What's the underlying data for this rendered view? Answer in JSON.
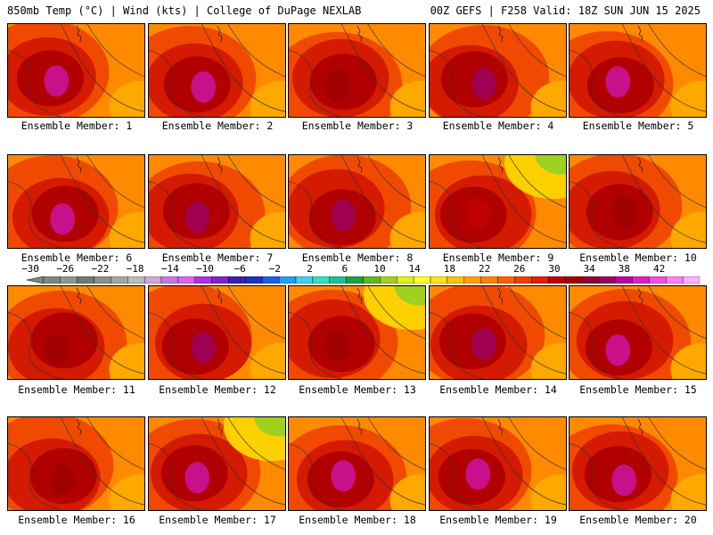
{
  "header": {
    "left": "850mb Temp (°C) | Wind (kts) | College of DuPage NEXLAB",
    "right": "00Z GEFS | F258 Valid: 18Z SUN JUN 15 2025"
  },
  "colorbar": {
    "labels": [
      "−30",
      "−26",
      "−22",
      "−18",
      "−14",
      "−10",
      "−6",
      "−2",
      "2",
      "6",
      "10",
      "14",
      "18",
      "22",
      "26",
      "30",
      "34",
      "38",
      "42"
    ],
    "colors": [
      "#7a8a7a",
      "#8c9a8c",
      "#6f7d6f",
      "#8e8e8e",
      "#a6a6a6",
      "#bcbcbc",
      "#d0a8d8",
      "#c878e0",
      "#e060f0",
      "#b030e0",
      "#8020d0",
      "#4020b0",
      "#2030c0",
      "#2060e0",
      "#20a0f0",
      "#40d0f0",
      "#30e0c0",
      "#20c090",
      "#20a040",
      "#60b820",
      "#a0d020",
      "#e0f020",
      "#ffff30",
      "#ffe020",
      "#ffc010",
      "#ffa000",
      "#ff8000",
      "#ff6000",
      "#f04000",
      "#e02000",
      "#c00000",
      "#a00000",
      "#900030",
      "#a00060",
      "#c000a0",
      "#e020c0",
      "#f050e0",
      "#ff80f0",
      "#ffb0ff"
    ]
  },
  "members": [
    {
      "caption": "Ensemble Member: 1",
      "blob": "#c8108a",
      "yellow": false
    },
    {
      "caption": "Ensemble Member: 2",
      "blob": "#c8108a",
      "yellow": false
    },
    {
      "caption": "Ensemble Member: 3",
      "blob": "#a00000",
      "yellow": false
    },
    {
      "caption": "Ensemble Member: 4",
      "blob": "#a00050",
      "yellow": false
    },
    {
      "caption": "Ensemble Member: 5",
      "blob": "#c8108a",
      "yellow": false
    },
    {
      "caption": "Ensemble Member: 6",
      "blob": "#c8108a",
      "yellow": false
    },
    {
      "caption": "Ensemble Member: 7",
      "blob": "#a00050",
      "yellow": false
    },
    {
      "caption": "Ensemble Member: 8",
      "blob": "#a00050",
      "yellow": false
    },
    {
      "caption": "Ensemble Member: 9",
      "blob": "#c00000",
      "yellow": true
    },
    {
      "caption": "Ensemble Member: 10",
      "blob": "#a00000",
      "yellow": false
    },
    {
      "caption": "Ensemble Member: 11",
      "blob": "#a00000",
      "yellow": false
    },
    {
      "caption": "Ensemble Member: 12",
      "blob": "#a00050",
      "yellow": false
    },
    {
      "caption": "Ensemble Member: 13",
      "blob": "#a00000",
      "yellow": true
    },
    {
      "caption": "Ensemble Member: 14",
      "blob": "#a00050",
      "yellow": false
    },
    {
      "caption": "Ensemble Member: 15",
      "blob": "#c8108a",
      "yellow": false
    },
    {
      "caption": "Ensemble Member: 16",
      "blob": "#a00000",
      "yellow": false
    },
    {
      "caption": "Ensemble Member: 17",
      "blob": "#c8108a",
      "yellow": true
    },
    {
      "caption": "Ensemble Member: 18",
      "blob": "#c8108a",
      "yellow": false
    },
    {
      "caption": "Ensemble Member: 19",
      "blob": "#c8108a",
      "yellow": false
    },
    {
      "caption": "Ensemble Member: 20",
      "blob": "#c8108a",
      "yellow": false
    }
  ]
}
